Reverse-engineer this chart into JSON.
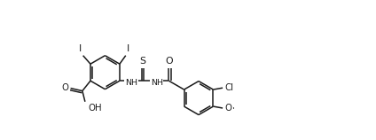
{
  "bg_color": "#ffffff",
  "line_color": "#1a1a1a",
  "line_width": 1.1,
  "font_size": 6.8,
  "figsize": [
    4.24,
    1.58
  ],
  "dpi": 100,
  "xlim": [
    0.0,
    8.5
  ],
  "ylim": [
    0.3,
    3.5
  ]
}
